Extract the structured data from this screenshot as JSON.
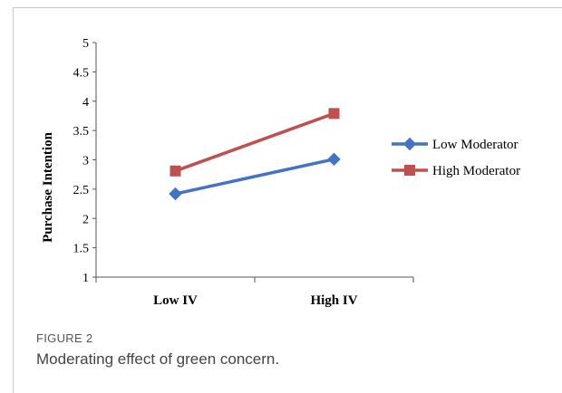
{
  "figure": {
    "label": "FIGURE 2",
    "caption": "Moderating effect of green concern."
  },
  "chart_data": {
    "type": "line",
    "categories": [
      "Low IV",
      "High IV"
    ],
    "ylabel": "Purchase Intention",
    "xlabel": "",
    "ylim": [
      1,
      5
    ],
    "yticks": [
      "1",
      "1.5",
      "2",
      "2.5",
      "3",
      "3.5",
      "4",
      "4.5",
      "5"
    ],
    "legend_position": "right",
    "grid": false,
    "series": [
      {
        "name": "Low Moderator",
        "values": [
          2.42,
          3.01
        ],
        "color": "#4472c4",
        "marker": "diamond"
      },
      {
        "name": "High Moderator",
        "values": [
          2.81,
          3.79
        ],
        "color": "#c0504d",
        "marker": "square"
      }
    ]
  }
}
